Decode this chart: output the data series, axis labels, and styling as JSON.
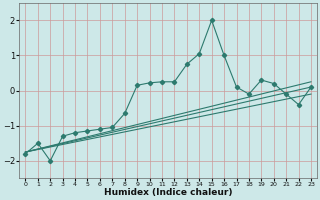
{
  "xlabel": "Humidex (Indice chaleur)",
  "bg_color": "#cde8e8",
  "line_color": "#2d7a6e",
  "grid_color_h": "#c8a8a8",
  "grid_color_v": "#c8a8a8",
  "xlim": [
    -0.5,
    23.5
  ],
  "ylim": [
    -2.5,
    2.5
  ],
  "yticks": [
    -2,
    -1,
    0,
    1,
    2
  ],
  "xticks": [
    0,
    1,
    2,
    3,
    4,
    5,
    6,
    7,
    8,
    9,
    10,
    11,
    12,
    13,
    14,
    15,
    16,
    17,
    18,
    19,
    20,
    21,
    22,
    23
  ],
  "series1_x": [
    0,
    1,
    2,
    3,
    4,
    5,
    6,
    7,
    8,
    9,
    10,
    11,
    12,
    13,
    14,
    15,
    16,
    17,
    18,
    19,
    20,
    21,
    22,
    23
  ],
  "series1_y": [
    -1.8,
    -1.5,
    -2.0,
    -1.3,
    -1.2,
    -1.15,
    -1.1,
    -1.05,
    -0.65,
    0.15,
    0.22,
    0.25,
    0.25,
    0.75,
    1.05,
    2.0,
    1.0,
    0.1,
    -0.1,
    0.3,
    0.2,
    -0.1,
    -0.4,
    0.1
  ],
  "series2_x": [
    0,
    23
  ],
  "series2_y": [
    -1.75,
    0.1
  ],
  "series3_x": [
    0,
    23
  ],
  "series3_y": [
    -1.75,
    0.25
  ],
  "series4_x": [
    0,
    23
  ],
  "series4_y": [
    -1.75,
    -0.1
  ]
}
